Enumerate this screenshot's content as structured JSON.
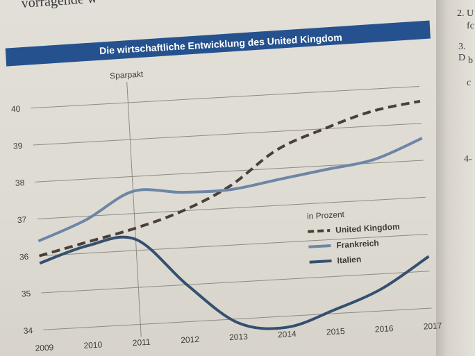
{
  "page": {
    "top_text": "vorragende w",
    "right_margin_text": [
      "2. U",
      "fc",
      "3. D",
      "b",
      "c",
      "4-"
    ]
  },
  "chart_data": {
    "type": "line",
    "title": "Die wirtschaftliche Entwicklung des United Kingdom",
    "annotation": "Sparpakt",
    "annotation_x": 2011,
    "legend_title": "in Prozent",
    "legend_position": "right",
    "x": [
      2009,
      2010,
      2011,
      2012,
      2013,
      2014,
      2015,
      2016,
      2017
    ],
    "x_tick_labels": [
      "2009",
      "2010",
      "2011",
      "2012",
      "2013",
      "2014",
      "2015",
      "2016",
      "2017"
    ],
    "y_tick_labels": [
      "34",
      "35",
      "36",
      "37",
      "38",
      "39",
      "40"
    ],
    "ylim": [
      34,
      40
    ],
    "grid": true,
    "series": [
      {
        "name": "United Kingdom",
        "style": "dashed",
        "color": "#4a3f37",
        "values": [
          36.0,
          36.3,
          36.6,
          37.0,
          37.6,
          38.5,
          39.0,
          39.4,
          39.6
        ]
      },
      {
        "name": "Frankreich",
        "style": "solid",
        "color": "#6d86a6",
        "values": [
          36.4,
          36.9,
          37.6,
          37.5,
          37.5,
          37.7,
          37.9,
          38.1,
          38.6
        ]
      },
      {
        "name": "Italien",
        "style": "solid",
        "color": "#34506f",
        "values": [
          35.8,
          36.2,
          36.3,
          35.0,
          33.9,
          33.7,
          34.1,
          34.6,
          35.4
        ]
      }
    ]
  },
  "colors": {
    "title_bar": "#25528f",
    "grid": "#8e8a84",
    "text": "#3e3c39"
  }
}
